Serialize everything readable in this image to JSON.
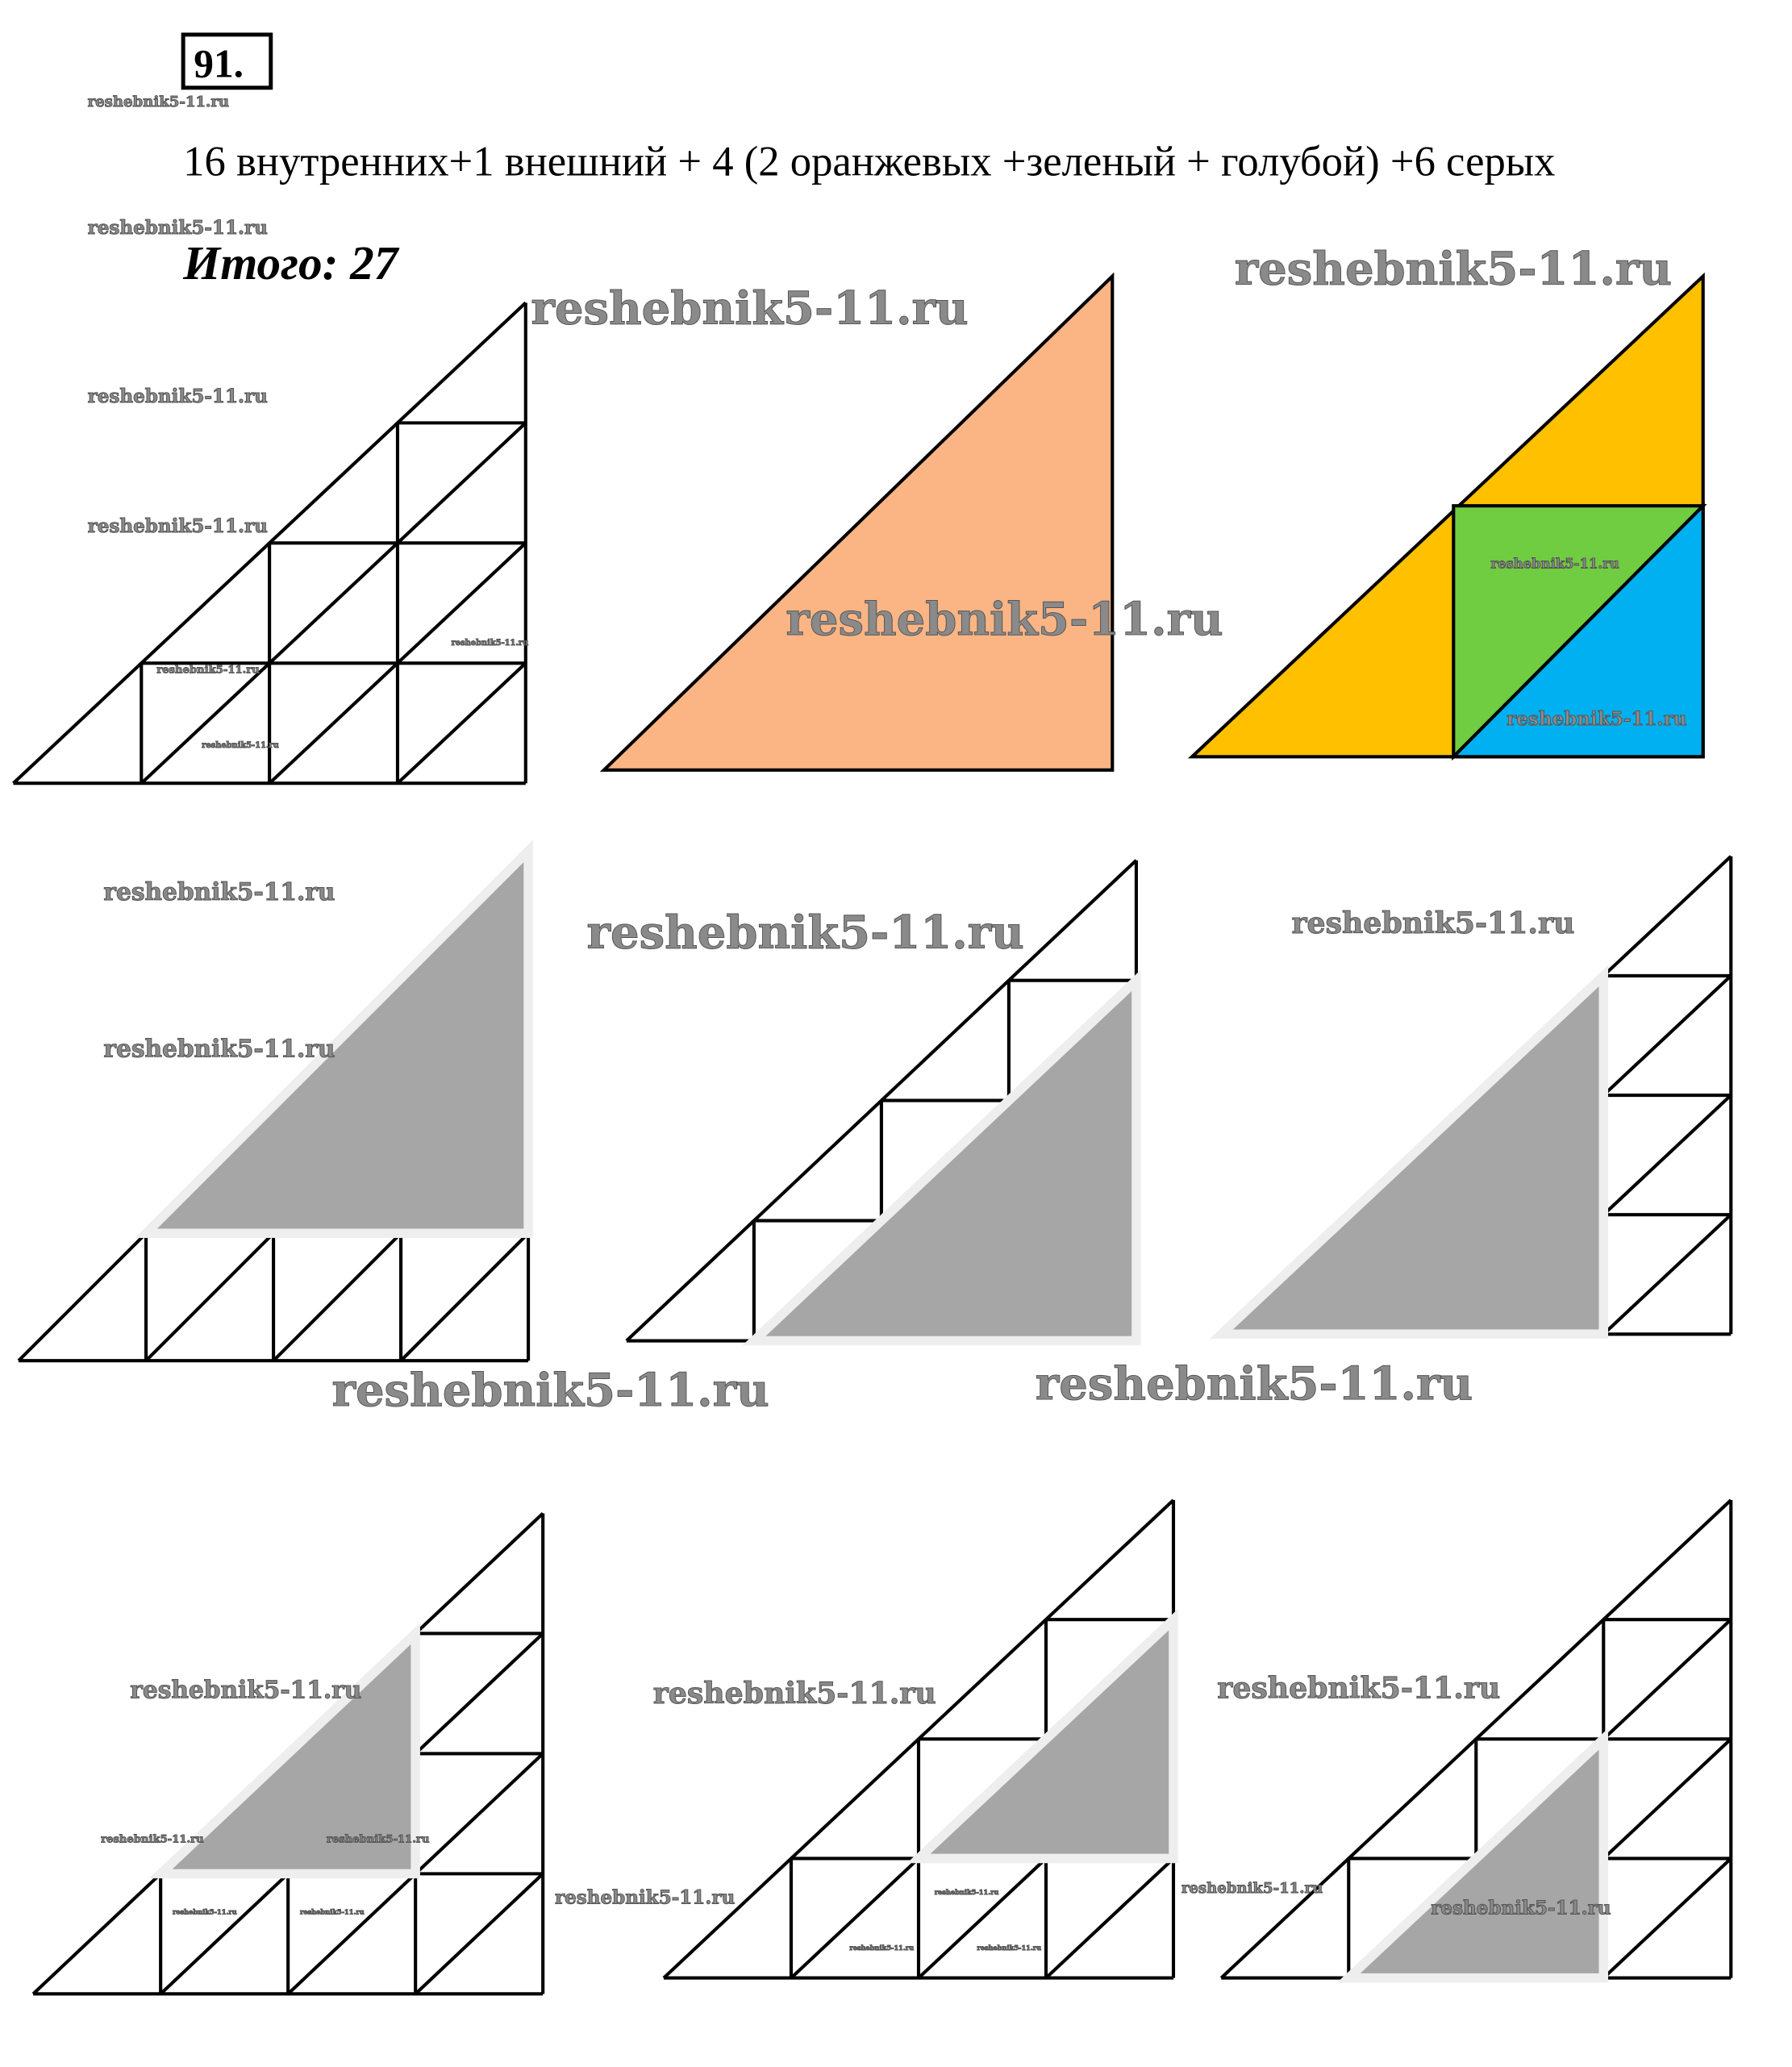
{
  "problem_number": "91.",
  "statement": "16 внутренних+1 внешний + 4 (2 оранжевых +зеленый + голубой) +6 серых",
  "total": "Итого: 27",
  "watermark": "reshebnik5-11.ru",
  "colors": {
    "orange": "#FBB584",
    "yellow": "#FFC000",
    "green": "#70CC40",
    "blue": "#00B0F0",
    "gray": "#A6A6A6",
    "line": "#000000"
  }
}
